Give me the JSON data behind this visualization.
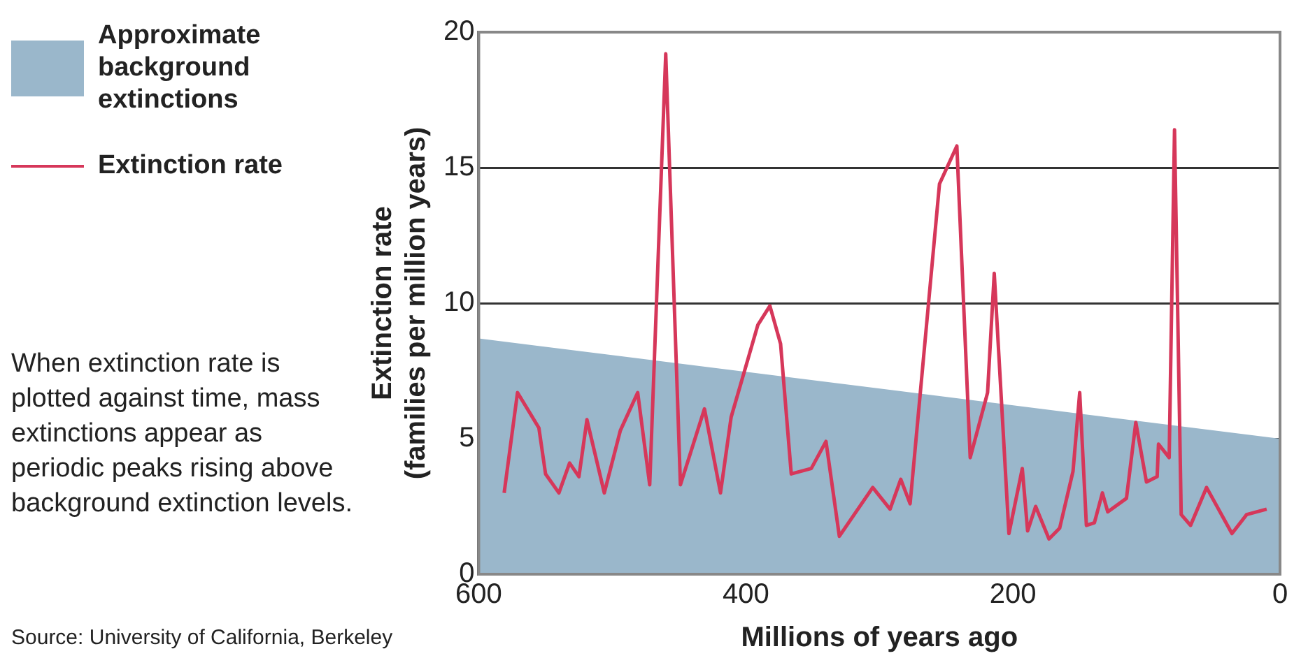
{
  "chart_data": {
    "type": "line",
    "xlabel": "Millions of years ago",
    "ylabel": "Extinction rate\n(families per million years)",
    "xlim": [
      600,
      0
    ],
    "xticks": [
      600,
      400,
      200,
      0
    ],
    "ylim": [
      0,
      20
    ],
    "yticks": [
      0,
      5,
      10,
      15,
      20
    ],
    "grid": "y",
    "legend": "left",
    "marker": "none",
    "line_style": "solid",
    "series": [
      {
        "name": "Approximate background extinctions",
        "type": "area",
        "color": "#9ab7cb",
        "x": [
          600,
          0
        ],
        "values": [
          8.7,
          5
        ]
      },
      {
        "name": "Extinction rate",
        "type": "line",
        "color": "#d6375a",
        "x": [
          581,
          571,
          555,
          550,
          540,
          532,
          525,
          519,
          506,
          494,
          481,
          472,
          460,
          449,
          431,
          419,
          411,
          391,
          382,
          374,
          366,
          351,
          340,
          330,
          305,
          292,
          284,
          277,
          255,
          242,
          232,
          219,
          214,
          203,
          193,
          189,
          183,
          173,
          165,
          155,
          150,
          145,
          139,
          133,
          129,
          115,
          108,
          100,
          92,
          91,
          83,
          79,
          74,
          67,
          55,
          36,
          25,
          10
        ],
        "values": [
          3.0,
          6.7,
          5.4,
          3.7,
          3.0,
          4.1,
          3.6,
          5.7,
          3.0,
          5.3,
          6.7,
          3.3,
          19.2,
          3.3,
          6.1,
          3.0,
          5.8,
          9.2,
          9.9,
          8.5,
          3.7,
          3.9,
          4.9,
          1.4,
          3.2,
          2.4,
          3.5,
          2.6,
          14.4,
          15.8,
          4.3,
          6.7,
          11.1,
          1.5,
          3.9,
          1.6,
          2.5,
          1.3,
          1.7,
          3.8,
          6.7,
          1.8,
          1.9,
          3.0,
          2.3,
          2.8,
          5.6,
          3.4,
          3.6,
          4.8,
          4.3,
          16.4,
          2.2,
          1.8,
          3.2,
          1.5,
          2.2,
          2.4
        ]
      }
    ],
    "annotations": [
      "When extinction rate is plotted against time, mass extinctions appear as periodic peaks rising above background extinction levels.",
      "Source: University of California, Berkeley"
    ]
  }
}
